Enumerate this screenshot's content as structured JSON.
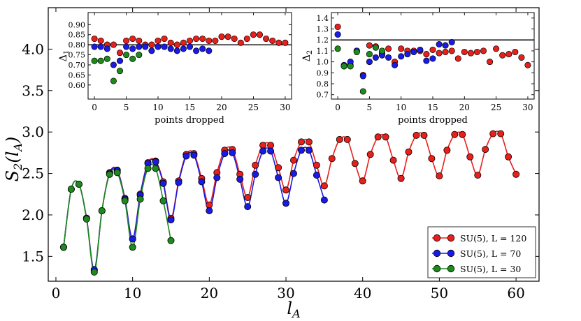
{
  "chart_data": [
    {
      "type": "line",
      "xlabel": "l_A",
      "ylabel": "S_2(l_A)",
      "xlim": [
        -1,
        63
      ],
      "ylim": [
        1.2,
        4.5
      ],
      "x_ticks": [
        0,
        10,
        20,
        30,
        40,
        50,
        60
      ],
      "y_ticks": [
        1.5,
        2.0,
        2.5,
        3.0,
        3.5,
        4.0
      ],
      "x_tick_labels": [
        "0",
        "10",
        "20",
        "30",
        "40",
        "50",
        "60"
      ],
      "y_tick_labels": [
        "1.5",
        "2.0",
        "2.5",
        "3.0",
        "3.5",
        "4.0"
      ],
      "legend_position": "lower-right",
      "series": [
        {
          "name": "SU(5), L = 120",
          "color": "#e8201c",
          "x": [
            1,
            2,
            3,
            4,
            5,
            6,
            7,
            8,
            9,
            10,
            11,
            12,
            13,
            14,
            15,
            16,
            17,
            18,
            19,
            20,
            21,
            22,
            23,
            24,
            25,
            26,
            27,
            28,
            29,
            30,
            31,
            32,
            33,
            34,
            35,
            36,
            37,
            38,
            39,
            40,
            41,
            42,
            43,
            44,
            45,
            46,
            47,
            48,
            49,
            50,
            51,
            52,
            53,
            54,
            55,
            56,
            57,
            58,
            59,
            60
          ],
          "values": [
            1.61,
            2.31,
            2.37,
            1.96,
            1.33,
            2.05,
            2.51,
            2.54,
            2.2,
            1.71,
            2.25,
            2.63,
            2.65,
            2.4,
            1.96,
            2.41,
            2.73,
            2.74,
            2.44,
            2.12,
            2.51,
            2.78,
            2.79,
            2.49,
            2.21,
            2.6,
            2.84,
            2.84,
            2.57,
            2.3,
            2.66,
            2.88,
            2.88,
            2.6,
            2.35,
            2.68,
            2.91,
            2.91,
            2.62,
            2.41,
            2.73,
            2.94,
            2.94,
            2.66,
            2.44,
            2.76,
            2.96,
            2.96,
            2.68,
            2.47,
            2.78,
            2.97,
            2.97,
            2.7,
            2.48,
            2.79,
            2.98,
            2.98,
            2.7,
            2.49
          ]
        },
        {
          "name": "SU(5), L = 70",
          "color": "#1a1ae6",
          "x": [
            1,
            2,
            3,
            4,
            5,
            6,
            7,
            8,
            9,
            10,
            11,
            12,
            13,
            14,
            15,
            16,
            17,
            18,
            19,
            20,
            21,
            22,
            23,
            24,
            25,
            26,
            27,
            28,
            29,
            30,
            31,
            32,
            33,
            34,
            35
          ],
          "values": [
            1.61,
            2.31,
            2.37,
            1.96,
            1.34,
            2.05,
            2.5,
            2.53,
            2.19,
            1.71,
            2.24,
            2.62,
            2.64,
            2.38,
            1.94,
            2.39,
            2.71,
            2.72,
            2.4,
            2.05,
            2.45,
            2.74,
            2.75,
            2.43,
            2.1,
            2.49,
            2.77,
            2.77,
            2.45,
            2.14,
            2.5,
            2.78,
            2.78,
            2.48,
            2.18
          ]
        },
        {
          "name": "SU(5), L = 30",
          "color": "#1e8a1e",
          "x": [
            1,
            2,
            3,
            4,
            5,
            6,
            7,
            8,
            9,
            10,
            11,
            12,
            13,
            14,
            15
          ],
          "values": [
            1.61,
            2.31,
            2.37,
            1.95,
            1.31,
            2.05,
            2.49,
            2.51,
            2.17,
            1.61,
            2.19,
            2.56,
            2.56,
            2.17,
            1.69
          ]
        }
      ]
    },
    {
      "type": "scatter",
      "xlabel": "points dropped",
      "ylabel": "Δ_1",
      "xlim": [
        -1,
        31
      ],
      "ylim": [
        0.53,
        0.96
      ],
      "reference_line": 0.8,
      "x_ticks": [
        0,
        5,
        10,
        15,
        20,
        25,
        30
      ],
      "y_ticks": [
        0.6,
        0.65,
        0.7,
        0.75,
        0.8,
        0.85,
        0.9
      ],
      "x_tick_labels": [
        "0",
        "5",
        "10",
        "15",
        "20",
        "25",
        "30"
      ],
      "y_tick_labels": [
        "0.60",
        "0.65",
        "0.70",
        "0.75",
        "0.80",
        "0.85",
        "0.90"
      ],
      "series": [
        {
          "name": "SU(5), L = 120",
          "color": "#e8201c",
          "x": [
            0,
            1,
            2,
            3,
            4,
            5,
            6,
            7,
            8,
            9,
            10,
            11,
            12,
            13,
            14,
            15,
            16,
            17,
            18,
            19,
            20,
            21,
            22,
            23,
            24,
            25,
            26,
            27,
            28,
            29,
            30
          ],
          "values": [
            0.83,
            0.82,
            0.8,
            0.8,
            0.76,
            0.82,
            0.83,
            0.82,
            0.8,
            0.8,
            0.82,
            0.83,
            0.81,
            0.8,
            0.81,
            0.82,
            0.83,
            0.83,
            0.82,
            0.82,
            0.84,
            0.84,
            0.83,
            0.81,
            0.83,
            0.85,
            0.85,
            0.83,
            0.82,
            0.81,
            0.81
          ]
        },
        {
          "name": "SU(5), L = 70",
          "color": "#1a1ae6",
          "x": [
            0,
            1,
            2,
            3,
            4,
            5,
            6,
            7,
            8,
            9,
            10,
            11,
            12,
            13,
            14,
            15,
            16,
            17,
            18
          ],
          "values": [
            0.79,
            0.79,
            0.78,
            0.7,
            0.72,
            0.79,
            0.78,
            0.79,
            0.79,
            0.77,
            0.79,
            0.79,
            0.78,
            0.77,
            0.78,
            0.79,
            0.77,
            0.78,
            0.77
          ]
        },
        {
          "name": "SU(5), L = 30",
          "color": "#1e8a1e",
          "x": [
            0,
            1,
            2,
            3,
            4,
            5,
            6,
            7
          ],
          "values": [
            0.72,
            0.72,
            0.73,
            0.62,
            0.67,
            0.75,
            0.73,
            0.75
          ]
        }
      ]
    },
    {
      "type": "scatter",
      "xlabel": "points dropped",
      "ylabel": "Δ_2",
      "xlim": [
        -1,
        31
      ],
      "ylim": [
        0.66,
        1.45
      ],
      "reference_line": 1.2,
      "x_ticks": [
        0,
        5,
        10,
        15,
        20,
        25,
        30
      ],
      "y_ticks": [
        0.7,
        0.8,
        0.9,
        1.0,
        1.1,
        1.2,
        1.3,
        1.4
      ],
      "x_tick_labels": [
        "0",
        "5",
        "10",
        "15",
        "20",
        "25",
        "30"
      ],
      "y_tick_labels": [
        "0.7",
        "0.8",
        "0.9",
        "1.0",
        "1.1",
        "1.2",
        "1.3",
        "1.4"
      ],
      "series": [
        {
          "name": "SU(5), L = 120",
          "color": "#e8201c",
          "x": [
            0,
            1,
            2,
            3,
            4,
            5,
            6,
            7,
            8,
            9,
            10,
            11,
            12,
            13,
            14,
            15,
            16,
            17,
            18,
            19,
            20,
            21,
            22,
            23,
            24,
            25,
            26,
            27,
            28,
            29,
            30
          ],
          "values": [
            1.32,
            0.96,
            0.97,
            1.1,
            0.88,
            1.15,
            1.14,
            1.08,
            1.12,
            1.0,
            1.12,
            1.1,
            1.1,
            1.1,
            1.07,
            1.11,
            1.08,
            1.09,
            1.1,
            1.03,
            1.09,
            1.08,
            1.09,
            1.1,
            1.0,
            1.12,
            1.06,
            1.07,
            1.09,
            1.04,
            0.97
          ]
        },
        {
          "name": "SU(5), L = 70",
          "color": "#1a1ae6",
          "x": [
            0,
            1,
            2,
            3,
            4,
            5,
            6,
            7,
            8,
            9,
            10,
            11,
            12,
            13,
            14,
            15,
            16,
            17,
            18
          ],
          "values": [
            1.25,
            0.97,
            1.0,
            1.1,
            0.87,
            1.0,
            1.04,
            1.06,
            1.04,
            0.97,
            1.05,
            1.07,
            1.09,
            1.11,
            1.01,
            1.03,
            1.16,
            1.15,
            1.18
          ]
        },
        {
          "name": "SU(5), L = 30",
          "color": "#1e8a1e",
          "x": [
            0,
            1,
            2,
            3,
            4,
            5,
            6,
            7
          ],
          "values": [
            1.12,
            0.96,
            0.96,
            1.09,
            0.73,
            1.07,
            1.13,
            1.1
          ]
        }
      ]
    }
  ]
}
